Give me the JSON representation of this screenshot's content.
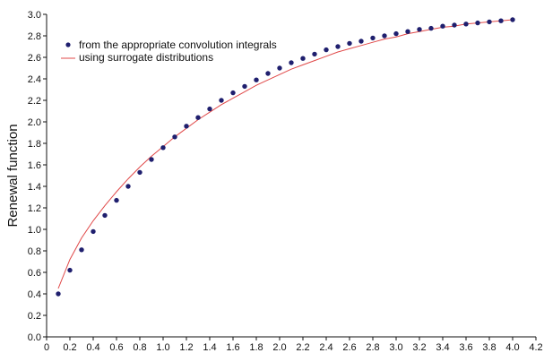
{
  "chart_data": {
    "type": "scatter",
    "title": "",
    "xlabel": "",
    "ylabel": "Renewal function",
    "xlim": [
      0,
      4.2
    ],
    "ylim": [
      0,
      3.0
    ],
    "xticks": [
      0,
      0.2,
      0.4,
      0.6,
      0.8,
      1.0,
      1.2,
      1.4,
      1.6,
      1.8,
      2.0,
      2.2,
      2.4,
      2.6,
      2.8,
      3.0,
      3.2,
      3.4,
      3.6,
      3.8,
      4.0,
      4.2
    ],
    "xtick_labels": [
      "0",
      "0.2",
      "0.4",
      "0.6",
      "0.8",
      "1.0",
      "1.2",
      "1.4",
      "1.6",
      "1.8",
      "2.0",
      "2.2",
      "2.4",
      "2.6",
      "2.8",
      "3.0",
      "3.2",
      "3.4",
      "3.6",
      "3.8",
      "4.0",
      "4.2"
    ],
    "yticks": [
      0,
      0.2,
      0.4,
      0.6,
      0.8,
      1.0,
      1.2,
      1.4,
      1.6,
      1.8,
      2.0,
      2.2,
      2.4,
      2.6,
      2.8,
      3.0
    ],
    "ytick_labels": [
      "0.0",
      "0.2",
      "0.4",
      "0.6",
      "0.8",
      "1.0",
      "1.2",
      "1.4",
      "1.6",
      "1.8",
      "2.0",
      "2.2",
      "2.4",
      "2.6",
      "2.8",
      "3.0"
    ],
    "grid": false,
    "legend_position": "top-left",
    "series": [
      {
        "name": "from the appropriate convolution integrals",
        "kind": "scatter",
        "color": "#1f1f6e",
        "x": [
          0.1,
          0.2,
          0.3,
          0.4,
          0.5,
          0.6,
          0.7,
          0.8,
          0.9,
          1.0,
          1.1,
          1.2,
          1.3,
          1.4,
          1.5,
          1.6,
          1.7,
          1.8,
          1.9,
          2.0,
          2.1,
          2.2,
          2.3,
          2.4,
          2.5,
          2.6,
          2.7,
          2.8,
          2.9,
          3.0,
          3.1,
          3.2,
          3.3,
          3.4,
          3.5,
          3.6,
          3.7,
          3.8,
          3.9,
          4.0
        ],
        "y": [
          0.4,
          0.62,
          0.81,
          0.98,
          1.13,
          1.27,
          1.4,
          1.53,
          1.65,
          1.76,
          1.86,
          1.96,
          2.04,
          2.12,
          2.2,
          2.27,
          2.33,
          2.39,
          2.45,
          2.5,
          2.55,
          2.59,
          2.63,
          2.67,
          2.7,
          2.73,
          2.75,
          2.78,
          2.8,
          2.82,
          2.84,
          2.86,
          2.87,
          2.89,
          2.9,
          2.91,
          2.92,
          2.93,
          2.94,
          2.95
        ]
      },
      {
        "name": "using surrogate distributions",
        "kind": "line",
        "color": "#e04848",
        "x": [
          0.1,
          0.2,
          0.3,
          0.4,
          0.5,
          0.6,
          0.7,
          0.8,
          0.9,
          1.0,
          1.1,
          1.2,
          1.3,
          1.4,
          1.5,
          1.6,
          1.7,
          1.8,
          1.9,
          2.0,
          2.1,
          2.2,
          2.3,
          2.4,
          2.5,
          2.6,
          2.7,
          2.8,
          2.9,
          3.0,
          3.1,
          3.2,
          3.3,
          3.4,
          3.5,
          3.6,
          3.7,
          3.8,
          3.9,
          4.0
        ],
        "y": [
          0.45,
          0.72,
          0.92,
          1.08,
          1.22,
          1.35,
          1.47,
          1.58,
          1.68,
          1.77,
          1.86,
          1.94,
          2.02,
          2.09,
          2.16,
          2.22,
          2.28,
          2.34,
          2.39,
          2.44,
          2.49,
          2.53,
          2.57,
          2.61,
          2.65,
          2.68,
          2.71,
          2.74,
          2.77,
          2.79,
          2.82,
          2.84,
          2.86,
          2.88,
          2.89,
          2.91,
          2.92,
          2.93,
          2.94,
          2.95
        ]
      }
    ]
  }
}
